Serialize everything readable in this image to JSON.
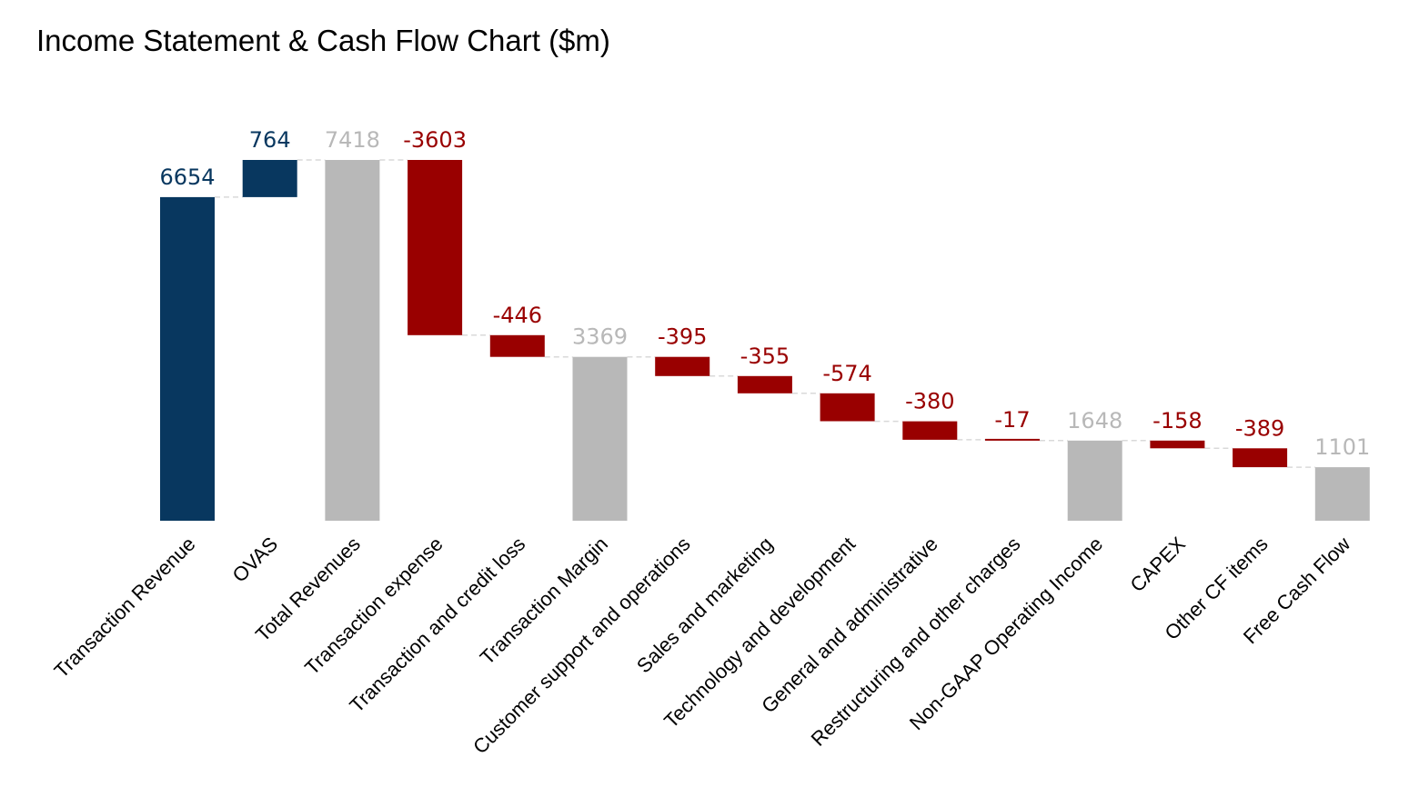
{
  "chart_data": {
    "type": "bar",
    "subtype": "waterfall",
    "title": "Income Statement & Cash Flow Chart ($m)",
    "xlabel": "",
    "ylabel": "",
    "ylim": [
      0,
      7418
    ],
    "grid": false,
    "legend": "none",
    "colors": {
      "revenue": "#08375F",
      "total": "#B8B8B8",
      "negative": "#990000",
      "connector": "#D9D9D9"
    },
    "categories": [
      "Transaction Revenue",
      "OVAS",
      "Total Revenues",
      "Transaction expense",
      "Transaction and credit loss",
      "Transaction Margin",
      "Customer support and operations",
      "Sales and marketing",
      "Technology and development",
      "General and administrative",
      "Restructuring and other charges",
      "Non-GAAP Operating Income",
      "CAPEX",
      "Other CF items",
      "Free Cash Flow"
    ],
    "values": [
      6654,
      764,
      7418,
      -3603,
      -446,
      3369,
      -395,
      -355,
      -574,
      -380,
      -17,
      1648,
      -158,
      -389,
      1101
    ],
    "kinds": [
      "revenue",
      "revenue",
      "total",
      "negative",
      "negative",
      "total",
      "negative",
      "negative",
      "negative",
      "negative",
      "negative",
      "total",
      "negative",
      "negative",
      "total"
    ],
    "data_labels": [
      "6654",
      "764",
      "7418",
      "-3603",
      "-446",
      "3369",
      "-395",
      "-355",
      "-574",
      "-380",
      "-17",
      "1648",
      "-158",
      "-389",
      "1101"
    ]
  }
}
